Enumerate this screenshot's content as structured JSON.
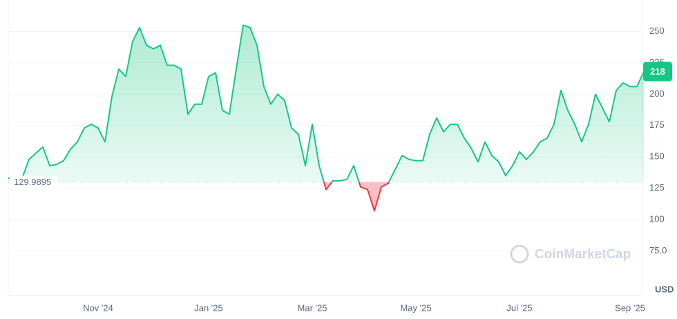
{
  "chart_data": {
    "type": "line",
    "categories": [
      null,
      null,
      null,
      null,
      null,
      null,
      null,
      null,
      null,
      null,
      null,
      null,
      null,
      "Nov '24",
      null,
      null,
      null,
      null,
      null,
      null,
      null,
      null,
      null,
      null,
      null,
      null,
      null,
      null,
      null,
      "Jan '25",
      null,
      null,
      null,
      null,
      null,
      null,
      null,
      null,
      null,
      null,
      null,
      null,
      null,
      null,
      "Mar '25",
      null,
      null,
      null,
      null,
      null,
      null,
      null,
      null,
      null,
      null,
      null,
      null,
      null,
      null,
      "May '25",
      null,
      null,
      null,
      null,
      null,
      null,
      null,
      null,
      null,
      null,
      null,
      null,
      null,
      null,
      "Jul '25",
      null,
      null,
      null,
      null,
      null,
      null,
      null,
      null,
      null,
      null,
      null,
      null,
      null,
      null,
      null,
      "Sep '25",
      null,
      null
    ],
    "series": [
      {
        "values": [
          133,
          134,
          133,
          148,
          153,
          158,
          143,
          144,
          147,
          156,
          162,
          173,
          176,
          173,
          162,
          198,
          220,
          214,
          242,
          253,
          239,
          236,
          239,
          223,
          223,
          220,
          184,
          192,
          192,
          214,
          217,
          187,
          184,
          220,
          255,
          253,
          239,
          206,
          192,
          200,
          195,
          173,
          168,
          143,
          176,
          143,
          124,
          131,
          131,
          132,
          143,
          126,
          124,
          107,
          126,
          129,
          140,
          151,
          148,
          147,
          147,
          168,
          181,
          170,
          176,
          176,
          165,
          157,
          146,
          162,
          151,
          146,
          135,
          143,
          154,
          148,
          154,
          162,
          165,
          176,
          203,
          187,
          176,
          162,
          176,
          200,
          189,
          178,
          203,
          209,
          206,
          206,
          218
        ]
      }
    ],
    "baseline": 129.9895,
    "up_color": "#16c784",
    "down_color": "#ea3943",
    "ylim": [
      50,
      275
    ],
    "yticks": [
      {
        "value": 75,
        "label": "75.0"
      },
      100,
      125,
      150,
      175,
      200,
      225,
      250
    ],
    "grid": true,
    "unit": "USD",
    "watermark": "CoinMarketCap"
  }
}
